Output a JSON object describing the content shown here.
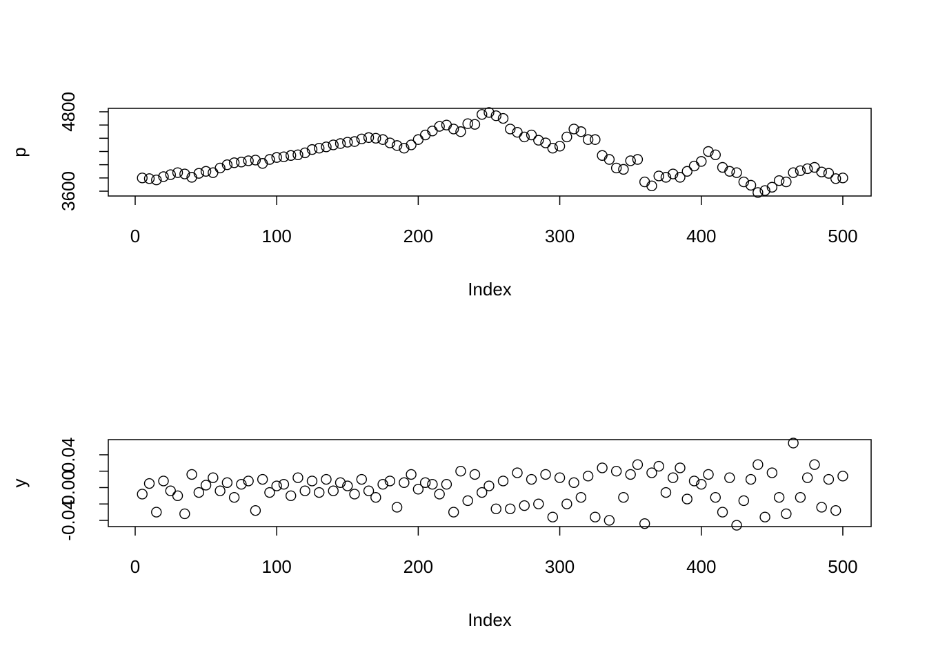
{
  "chart_data": [
    {
      "type": "scatter",
      "ylabel": "p",
      "xlabel": "Index",
      "x": [
        5,
        10,
        15,
        20,
        25,
        30,
        35,
        40,
        45,
        50,
        55,
        60,
        65,
        70,
        75,
        80,
        85,
        90,
        95,
        100,
        105,
        110,
        115,
        120,
        125,
        130,
        135,
        140,
        145,
        150,
        155,
        160,
        165,
        170,
        175,
        180,
        185,
        190,
        195,
        200,
        205,
        210,
        215,
        220,
        225,
        230,
        235,
        240,
        245,
        250,
        255,
        260,
        265,
        270,
        275,
        280,
        285,
        290,
        295,
        300,
        305,
        310,
        315,
        320,
        325,
        330,
        335,
        340,
        345,
        350,
        355,
        360,
        365,
        370,
        375,
        380,
        385,
        390,
        395,
        400,
        405,
        410,
        415,
        420,
        425,
        430,
        435,
        440,
        445,
        450,
        455,
        460,
        465,
        470,
        475,
        480,
        485,
        490,
        495,
        500
      ],
      "values": [
        3800,
        3790,
        3770,
        3820,
        3850,
        3880,
        3860,
        3810,
        3870,
        3900,
        3880,
        3950,
        4000,
        4030,
        4040,
        4060,
        4070,
        4020,
        4080,
        4110,
        4120,
        4140,
        4150,
        4180,
        4230,
        4250,
        4270,
        4300,
        4320,
        4340,
        4350,
        4390,
        4410,
        4400,
        4380,
        4330,
        4290,
        4250,
        4300,
        4380,
        4450,
        4510,
        4580,
        4600,
        4540,
        4500,
        4620,
        4610,
        4760,
        4790,
        4740,
        4700,
        4540,
        4490,
        4420,
        4450,
        4370,
        4330,
        4250,
        4280,
        4420,
        4540,
        4500,
        4380,
        4380,
        4140,
        4080,
        3950,
        3930,
        4060,
        4080,
        3740,
        3680,
        3830,
        3810,
        3860,
        3810,
        3900,
        3980,
        4050,
        4200,
        4150,
        3960,
        3900,
        3880,
        3740,
        3690,
        3580,
        3610,
        3660,
        3760,
        3740,
        3880,
        3910,
        3940,
        3960,
        3890,
        3870,
        3790,
        3800
      ],
      "xlim": [
        -19,
        520
      ],
      "ylim": [
        3527,
        4852
      ],
      "xticks": [
        0,
        100,
        200,
        300,
        400,
        500
      ],
      "yticks": [
        3600,
        4800
      ],
      "minor_yticks": [
        3800,
        4000,
        4200,
        4400,
        4600
      ]
    },
    {
      "type": "scatter",
      "ylabel": "y",
      "xlabel": "Index",
      "x": [
        5,
        10,
        15,
        20,
        25,
        30,
        35,
        40,
        45,
        50,
        55,
        60,
        65,
        70,
        75,
        80,
        85,
        90,
        95,
        100,
        105,
        110,
        115,
        120,
        125,
        130,
        135,
        140,
        145,
        150,
        155,
        160,
        165,
        170,
        175,
        180,
        185,
        190,
        195,
        200,
        205,
        210,
        215,
        220,
        225,
        230,
        235,
        240,
        245,
        250,
        255,
        260,
        265,
        270,
        275,
        280,
        285,
        290,
        295,
        300,
        305,
        310,
        315,
        320,
        325,
        330,
        335,
        340,
        345,
        350,
        355,
        360,
        365,
        370,
        375,
        380,
        385,
        390,
        395,
        400,
        405,
        410,
        415,
        420,
        425,
        430,
        435,
        440,
        445,
        450,
        455,
        460,
        465,
        470,
        475,
        480,
        485,
        490,
        495,
        500
      ],
      "values": [
        -0.008,
        0.005,
        -0.03,
        0.008,
        -0.004,
        -0.01,
        -0.032,
        0.016,
        -0.006,
        0.003,
        0.012,
        -0.004,
        0.006,
        -0.012,
        0.004,
        0.008,
        -0.028,
        0.01,
        -0.006,
        0.002,
        0.004,
        -0.01,
        0.012,
        -0.004,
        0.008,
        -0.006,
        0.01,
        -0.004,
        0.006,
        0.002,
        -0.008,
        0.01,
        -0.004,
        -0.012,
        0.004,
        0.008,
        -0.024,
        0.006,
        0.016,
        -0.002,
        0.006,
        0.004,
        -0.008,
        0.004,
        -0.03,
        0.02,
        -0.016,
        0.016,
        -0.006,
        0.002,
        -0.026,
        0.008,
        -0.026,
        0.018,
        -0.022,
        0.01,
        -0.02,
        0.016,
        -0.036,
        0.012,
        -0.02,
        0.006,
        -0.012,
        0.014,
        -0.036,
        0.024,
        -0.04,
        0.02,
        -0.012,
        0.016,
        0.028,
        -0.044,
        0.018,
        0.026,
        -0.006,
        0.012,
        0.024,
        -0.014,
        0.008,
        0.004,
        0.016,
        -0.012,
        -0.03,
        0.012,
        -0.046,
        -0.016,
        0.01,
        0.028,
        -0.036,
        0.018,
        -0.012,
        -0.032,
        0.0543,
        -0.012,
        0.012,
        0.028,
        -0.024,
        0.01,
        -0.028,
        0.014
      ],
      "xlim": [
        -19,
        520
      ],
      "ylim": [
        -0.0476,
        0.0585
      ],
      "xticks": [
        0,
        100,
        200,
        300,
        400,
        500
      ],
      "yticks": [
        -0.04,
        {
          "value": 0,
          "label": "0.00"
        },
        0.04
      ],
      "minor_yticks": [
        -0.02,
        0.02
      ]
    }
  ]
}
